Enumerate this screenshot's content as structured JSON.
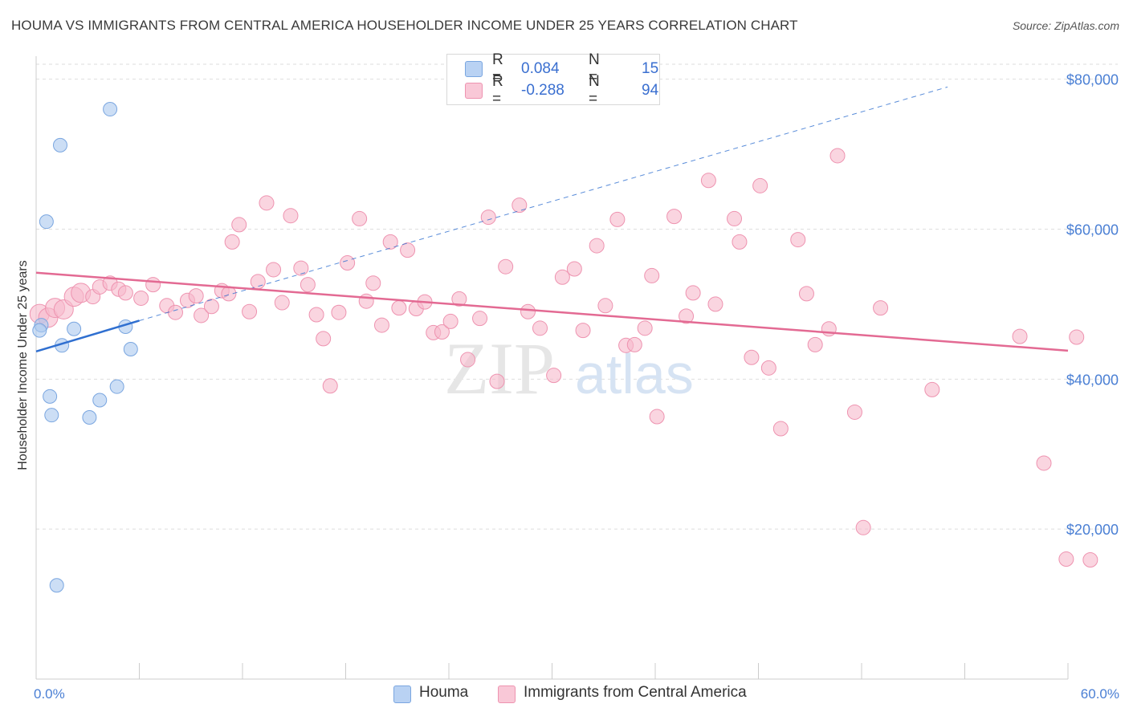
{
  "title": "HOUMA VS IMMIGRANTS FROM CENTRAL AMERICA HOUSEHOLDER INCOME UNDER 25 YEARS CORRELATION CHART",
  "source": "Source: ZipAtlas.com",
  "watermark": {
    "zip": "ZIP",
    "atlas": "atlas"
  },
  "legend": {
    "houma": {
      "r_label": "R =",
      "r_value": "0.084",
      "n_label": "N =",
      "n_value": "15"
    },
    "central_america": {
      "r_label": "R =",
      "r_value": "-0.288",
      "n_label": "N =",
      "n_value": "94"
    }
  },
  "bottom_legend": {
    "houma": "Houma",
    "central_america": "Immigrants from Central America"
  },
  "colors": {
    "houma_fill": "#aac8ef",
    "houma_stroke": "#7aa6e0",
    "houma_line": "#2f6fd0",
    "ca_fill": "#f6b9cc",
    "ca_stroke": "#ee93b0",
    "ca_line": "#e36a93",
    "grid": "#dedede",
    "tick_text": "#4a7fd4"
  },
  "chart_data": {
    "type": "scatter",
    "title": "HOUMA VS IMMIGRANTS FROM CENTRAL AMERICA HOUSEHOLDER INCOME UNDER 25 YEARS CORRELATION CHART",
    "xlabel": "",
    "ylabel": "Householder Income Under 25 years",
    "xlim": [
      0,
      60
    ],
    "ylim": [
      0,
      82000
    ],
    "x_tick_labels": [
      "0.0%",
      "60.0%"
    ],
    "y_ticks": [
      20000,
      40000,
      60000,
      80000
    ],
    "y_tick_labels": [
      "$20,000",
      "$40,000",
      "$60,000",
      "$80,000"
    ],
    "grid": true,
    "legend_position": "top-center",
    "series": [
      {
        "name": "Houma",
        "r": 0.084,
        "n": 15,
        "trend": {
          "x": [
            0,
            6
          ],
          "y": [
            43700,
            47800
          ],
          "dashed_extension_to": [
            60,
            83600
          ]
        },
        "points": [
          [
            4.3,
            76000
          ],
          [
            1.4,
            71200
          ],
          [
            0.6,
            61000
          ],
          [
            0.3,
            47200
          ],
          [
            0.2,
            46500
          ],
          [
            2.2,
            46700
          ],
          [
            5.2,
            47000
          ],
          [
            1.5,
            44500
          ],
          [
            5.5,
            44000
          ],
          [
            4.7,
            39000
          ],
          [
            0.8,
            37700
          ],
          [
            3.7,
            37200
          ],
          [
            0.9,
            35200
          ],
          [
            3.1,
            34900
          ],
          [
            1.2,
            12500
          ]
        ]
      },
      {
        "name": "Immigrants from Central America",
        "r": -0.288,
        "n": 94,
        "trend": {
          "x": [
            0,
            60
          ],
          "y": [
            54200,
            43800
          ]
        },
        "points": [
          [
            0.2,
            48700
          ],
          [
            0.7,
            48200
          ],
          [
            1.1,
            49500
          ],
          [
            1.6,
            49300
          ],
          [
            2.2,
            51000
          ],
          [
            2.6,
            51500
          ],
          [
            3.3,
            51000
          ],
          [
            3.7,
            52300
          ],
          [
            4.3,
            52800
          ],
          [
            4.8,
            52000
          ],
          [
            5.2,
            51500
          ],
          [
            6.1,
            50800
          ],
          [
            6.8,
            52600
          ],
          [
            7.6,
            49800
          ],
          [
            8.1,
            48900
          ],
          [
            8.8,
            50500
          ],
          [
            9.3,
            51100
          ],
          [
            9.6,
            48500
          ],
          [
            10.2,
            49700
          ],
          [
            10.8,
            51800
          ],
          [
            11.2,
            51400
          ],
          [
            11.4,
            58300
          ],
          [
            11.8,
            60600
          ],
          [
            12.4,
            49000
          ],
          [
            12.9,
            53000
          ],
          [
            13.4,
            63500
          ],
          [
            13.8,
            54600
          ],
          [
            14.3,
            50200
          ],
          [
            14.8,
            61800
          ],
          [
            15.4,
            54800
          ],
          [
            15.8,
            52600
          ],
          [
            16.3,
            48600
          ],
          [
            16.7,
            45400
          ],
          [
            17.1,
            39100
          ],
          [
            17.6,
            48900
          ],
          [
            18.1,
            55500
          ],
          [
            18.8,
            61400
          ],
          [
            19.2,
            50400
          ],
          [
            19.6,
            52800
          ],
          [
            20.1,
            47200
          ],
          [
            20.6,
            58300
          ],
          [
            21.1,
            49500
          ],
          [
            21.6,
            57200
          ],
          [
            22.1,
            49400
          ],
          [
            22.6,
            50300
          ],
          [
            23.1,
            46200
          ],
          [
            23.6,
            46300
          ],
          [
            24.1,
            47700
          ],
          [
            24.6,
            50700
          ],
          [
            25.1,
            42600
          ],
          [
            25.8,
            48100
          ],
          [
            26.3,
            61600
          ],
          [
            26.8,
            39700
          ],
          [
            27.3,
            55000
          ],
          [
            28.1,
            63200
          ],
          [
            28.6,
            49000
          ],
          [
            29.3,
            46800
          ],
          [
            30.1,
            40500
          ],
          [
            30.6,
            53600
          ],
          [
            31.3,
            54700
          ],
          [
            31.8,
            46500
          ],
          [
            32.6,
            57800
          ],
          [
            33.1,
            49800
          ],
          [
            33.8,
            61300
          ],
          [
            34.3,
            44500
          ],
          [
            34.8,
            44600
          ],
          [
            35.4,
            46800
          ],
          [
            35.8,
            53800
          ],
          [
            36.1,
            35000
          ],
          [
            37.1,
            61700
          ],
          [
            37.8,
            48400
          ],
          [
            38.2,
            51500
          ],
          [
            39.1,
            66500
          ],
          [
            39.5,
            50000
          ],
          [
            40.6,
            61400
          ],
          [
            40.9,
            58300
          ],
          [
            41.6,
            42900
          ],
          [
            42.1,
            65800
          ],
          [
            42.6,
            41500
          ],
          [
            43.3,
            33400
          ],
          [
            44.3,
            58600
          ],
          [
            44.8,
            51400
          ],
          [
            45.3,
            44600
          ],
          [
            46.1,
            46700
          ],
          [
            46.6,
            69800
          ],
          [
            47.6,
            35600
          ],
          [
            48.1,
            20200
          ],
          [
            49.1,
            49500
          ],
          [
            52.1,
            38600
          ],
          [
            57.2,
            45700
          ],
          [
            58.6,
            28800
          ],
          [
            59.9,
            16000
          ],
          [
            61.3,
            15900
          ],
          [
            60.5,
            45600
          ]
        ]
      }
    ]
  }
}
